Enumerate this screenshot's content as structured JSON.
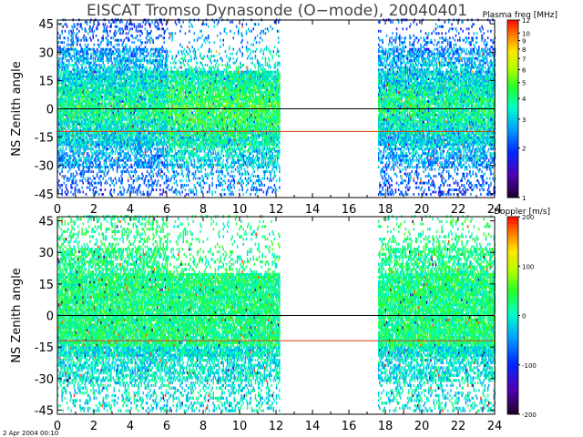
{
  "figure": {
    "title": "EISCAT Tromso Dynasonde (O−mode),  20040401",
    "timestamp": "2 Apr 2004 00:10"
  },
  "chart_data": [
    {
      "type": "heatmap",
      "title": "EISCAT Tromso Dynasonde (O−mode),  20040401",
      "ylabel": "NS Zenith angle",
      "xlabel": "",
      "xlim": [
        0,
        24
      ],
      "ylim": [
        -47,
        47
      ],
      "xticks": [
        0,
        2,
        4,
        6,
        8,
        10,
        12,
        14,
        16,
        18,
        20,
        22,
        24
      ],
      "yticks": [
        45,
        30,
        15,
        0,
        -15,
        -30,
        -45
      ],
      "reference_lines": [
        {
          "y": 0,
          "color": "#000000"
        },
        {
          "y": -12,
          "color": "#d04010"
        }
      ],
      "data_segments": [
        {
          "x_start": 0.0,
          "x_end": 12.2
        },
        {
          "x_start": 17.6,
          "x_end": 24.0
        }
      ],
      "colorbar": {
        "label": "Plasma freq [MHz]",
        "scale": "log",
        "range": [
          1,
          12
        ],
        "ticks": [
          12,
          10,
          9,
          8,
          7,
          6,
          5,
          4,
          3,
          2,
          1
        ]
      }
    },
    {
      "type": "heatmap",
      "title": "",
      "ylabel": "NS Zenith angle",
      "xlabel": "",
      "xlim": [
        0,
        24
      ],
      "ylim": [
        -47,
        47
      ],
      "xticks": [
        0,
        2,
        4,
        6,
        8,
        10,
        12,
        14,
        16,
        18,
        20,
        22,
        24
      ],
      "yticks": [
        45,
        30,
        15,
        0,
        -15,
        -30,
        -45
      ],
      "reference_lines": [
        {
          "y": 0,
          "color": "#000000"
        },
        {
          "y": -12,
          "color": "#d04010"
        }
      ],
      "data_segments": [
        {
          "x_start": 0.0,
          "x_end": 12.2
        },
        {
          "x_start": 17.6,
          "x_end": 24.0
        }
      ],
      "colorbar": {
        "label": "Doppler [m/s]",
        "scale": "linear",
        "range": [
          -200,
          200
        ],
        "ticks": [
          200,
          100,
          0,
          -100,
          -200
        ]
      }
    }
  ]
}
